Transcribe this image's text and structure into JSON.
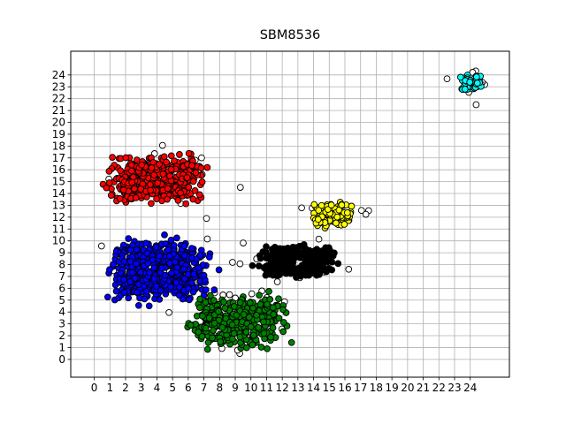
{
  "chart_data": {
    "type": "scatter",
    "title": "SBM8536",
    "xlabel": "",
    "ylabel": "",
    "xlim": [
      -1.5,
      26.5
    ],
    "ylim": [
      -1.5,
      26.0
    ],
    "xticks": [
      0,
      1,
      2,
      3,
      4,
      5,
      6,
      7,
      8,
      9,
      10,
      11,
      12,
      13,
      14,
      15,
      16,
      17,
      18,
      19,
      20,
      21,
      22,
      23,
      24
    ],
    "yticks": [
      0,
      1,
      2,
      3,
      4,
      5,
      6,
      7,
      8,
      9,
      10,
      11,
      12,
      13,
      14,
      15,
      16,
      17,
      18,
      19,
      20,
      21,
      22,
      23,
      24
    ],
    "grid": true,
    "legend": "none",
    "clusters": [
      {
        "color": "#ff0000",
        "center": [
          4.0,
          15.2
        ],
        "spread": [
          4.5,
          3.0
        ],
        "count": 420
      },
      {
        "color": "#0000ff",
        "center": [
          4.2,
          7.5
        ],
        "spread": [
          5.0,
          4.0
        ],
        "count": 520
      },
      {
        "color": "#008000",
        "center": [
          9.2,
          3.2
        ],
        "spread": [
          4.5,
          3.5
        ],
        "count": 340
      },
      {
        "color": "#000000",
        "center": [
          12.8,
          8.3
        ],
        "spread": [
          3.8,
          2.0
        ],
        "count": 300
      },
      {
        "color": "#ffff00",
        "center": [
          15.2,
          12.3
        ],
        "spread": [
          2.0,
          1.6
        ],
        "count": 110
      },
      {
        "color": "#00ffff",
        "center": [
          24.0,
          23.3
        ],
        "spread": [
          1.2,
          1.1
        ],
        "count": 60
      }
    ],
    "noise": {
      "color": "#ffffff",
      "count": 90
    }
  }
}
